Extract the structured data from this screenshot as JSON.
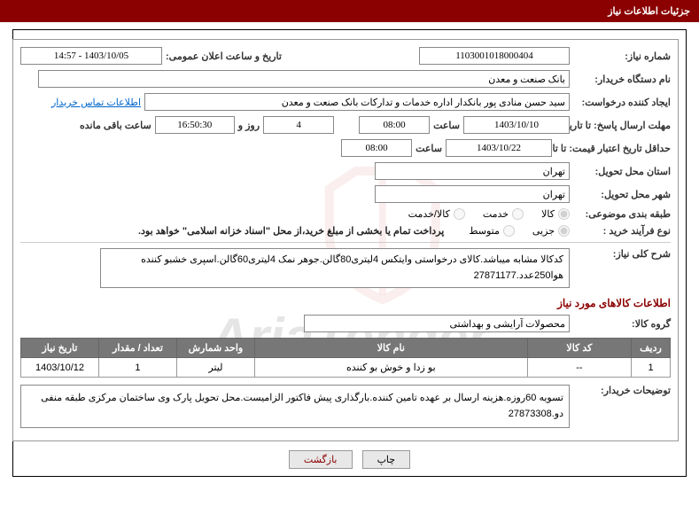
{
  "header_title": "جزئیات اطلاعات نیاز",
  "labels": {
    "need_no": "شماره نیاز:",
    "announce_date": "تاریخ و ساعت اعلان عمومی:",
    "buyer_org": "نام دستگاه خریدار:",
    "request_creator": "ایجاد کننده درخواست:",
    "contact_link": "اطلاعات تماس خریدار",
    "reply_deadline": "مهلت ارسال پاسخ: تا تاریخ:",
    "time": "ساعت",
    "days_and": "روز و",
    "remaining_time": "ساعت باقی مانده",
    "min_validity": "حداقل تاریخ اعتبار قیمت: تا تاریخ:",
    "delivery_province": "استان محل تحویل:",
    "delivery_city": "شهر محل تحویل:",
    "subject_class": "طبقه بندی موضوعی:",
    "purchase_type": "نوع فرآیند خرید :",
    "need_summary": "شرح کلی نیاز:",
    "commodity_section": "اطلاعات کالاهای مورد نیاز",
    "commodity_group": "گروه کالا:",
    "buyer_notes": "توضیحات خریدار:"
  },
  "values": {
    "need_no": "1103001018000404",
    "announce_date": "1403/10/05 - 14:57",
    "buyer_org": "بانک صنعت و معدن",
    "request_creator": "سید حسن منادی پور بانکدار اداره خدمات و تدارکات بانک صنعت و معدن",
    "reply_date": "1403/10/10",
    "reply_time": "08:00",
    "remaining_days": "4",
    "remaining_clock": "16:50:30",
    "validity_date": "1403/10/22",
    "validity_time": "08:00",
    "delivery_province": "تهران",
    "delivery_city": "تهران",
    "need_summary": "کدکالا مشابه میباشد.کالای درخواستی وایتکس 4لیتری80گالن.جوهر نمک 4لیتری60گالن.اسپری خشبو کننده هوا250عدد.27871177",
    "commodity_group": "محصولات آرایشی و بهداشتی",
    "buyer_notes": "تسویه 60روزه.هزینه ارسال بر عهده تامین کننده.بارگذاری پیش فاکتور الزامیست.محل تحویل پارک وی ساختمان مرکزی طبقه منفی دو.27873308"
  },
  "radio_subject": {
    "options": [
      "کالا",
      "خدمت",
      "کالا/خدمت"
    ],
    "selected": 0
  },
  "radio_purchase": {
    "options": [
      "جزیی",
      "متوسط"
    ],
    "selected": 0,
    "note": "پرداخت تمام یا بخشی از مبلغ خرید،از محل \"اسناد خزانه اسلامی\" خواهد بود."
  },
  "table": {
    "headers": [
      "ردیف",
      "کد کالا",
      "نام کالا",
      "واحد شمارش",
      "تعداد / مقدار",
      "تاریخ نیاز"
    ],
    "col_widths": [
      "6%",
      "16%",
      "42%",
      "12%",
      "12%",
      "12%"
    ],
    "rows": [
      [
        "1",
        "--",
        "بو زدا و خوش بو کننده",
        "لیتر",
        "1",
        "1403/10/12"
      ]
    ]
  },
  "buttons": {
    "print": "چاپ",
    "back": "بازگشت"
  },
  "colors": {
    "header_bg": "#8b0000",
    "header_fg": "#ffffff",
    "th_bg": "#777777",
    "border": "#888888",
    "link": "#0066cc"
  }
}
